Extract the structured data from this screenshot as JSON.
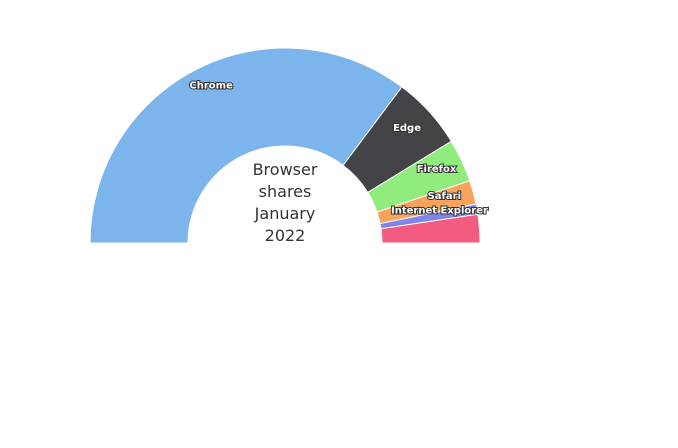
{
  "chart_data": {
    "type": "pie",
    "title_lines": [
      "Browser",
      "shares",
      "January",
      "2022"
    ],
    "start_angle": -90,
    "end_angle": 90,
    "labels": [
      "Chrome",
      "Edge",
      "Firefox",
      "Safari",
      "Internet Explorer",
      ""
    ],
    "values": [
      73.03,
      12.52,
      7.39,
      4.07,
      1.76,
      4.88
    ],
    "colors": [
      "#7cb5ec",
      "#434348",
      "#90ed7d",
      "#f7a35c",
      "#8085e9",
      "#f15c80"
    ],
    "data_labels": true,
    "legend": "none"
  }
}
